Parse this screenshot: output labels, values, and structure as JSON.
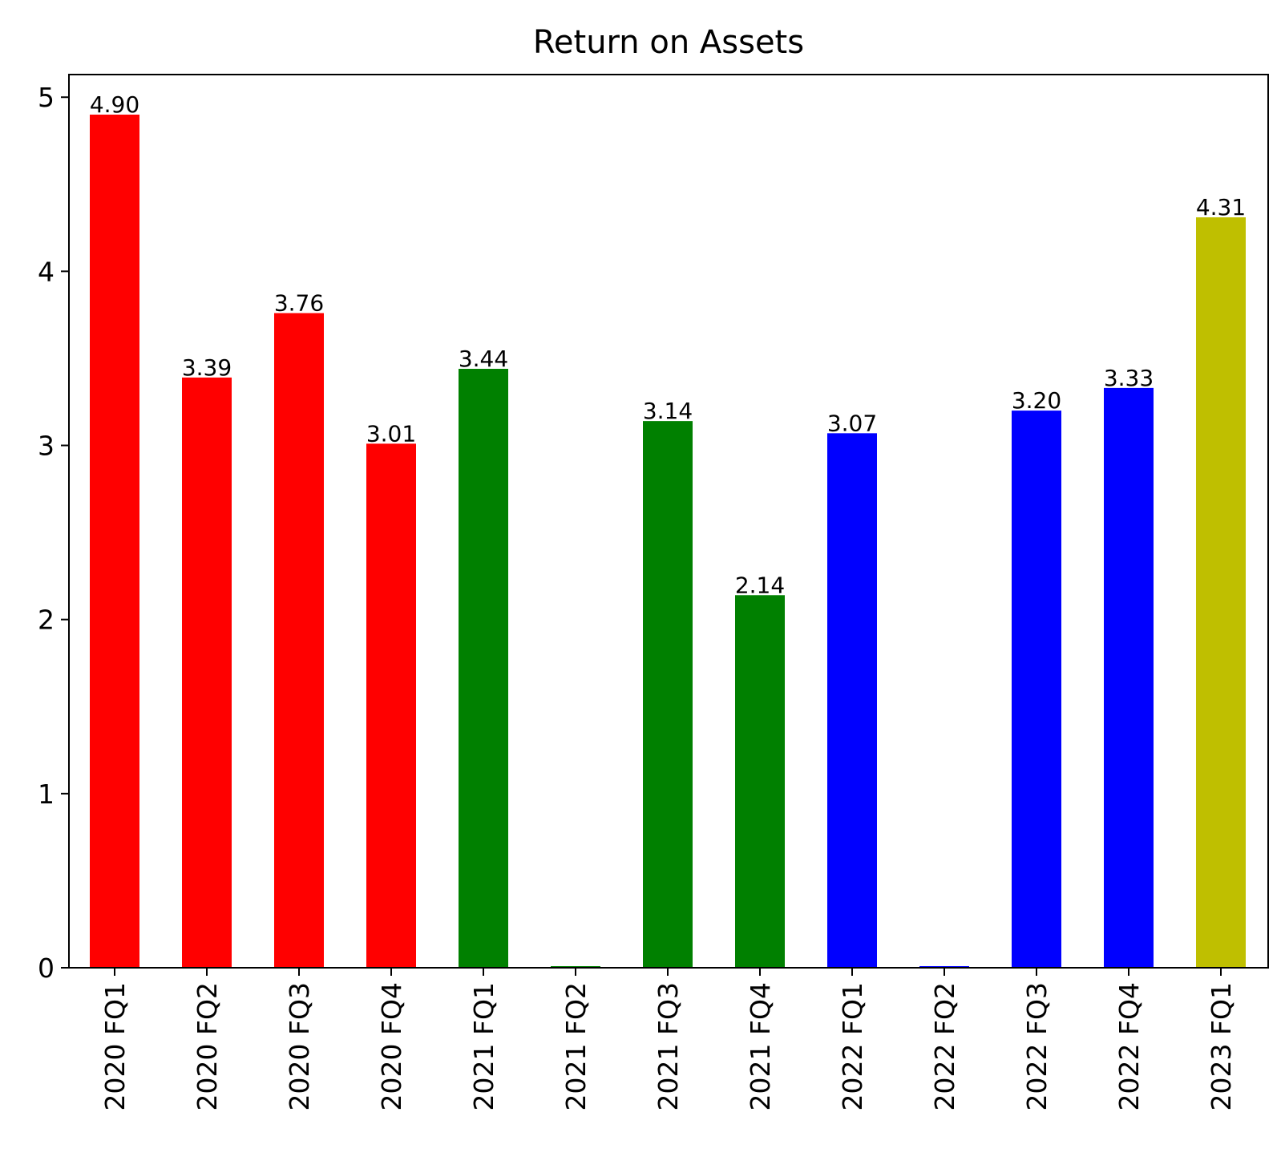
{
  "chart_data": {
    "type": "bar",
    "title": "Return on Assets",
    "xlabel": "",
    "ylabel": "",
    "categories": [
      "2020 FQ1",
      "2020 FQ2",
      "2020 FQ3",
      "2020 FQ4",
      "2021 FQ1",
      "2021 FQ2",
      "2021 FQ3",
      "2021 FQ4",
      "2022 FQ1",
      "2022 FQ2",
      "2022 FQ3",
      "2022 FQ4",
      "2023 FQ1"
    ],
    "values": [
      4.9,
      3.39,
      3.76,
      3.01,
      3.44,
      0.0,
      3.14,
      2.14,
      3.07,
      0.0,
      3.2,
      3.33,
      4.31
    ],
    "value_labels": [
      "4.90",
      "3.39",
      "3.76",
      "3.01",
      "3.44",
      "",
      "3.14",
      "2.14",
      "3.07",
      "",
      "3.20",
      "3.33",
      "4.31"
    ],
    "bar_colors": [
      "#ff0000",
      "#ff0000",
      "#ff0000",
      "#ff0000",
      "#008000",
      "#008000",
      "#008000",
      "#008000",
      "#0000ff",
      "#0000ff",
      "#0000ff",
      "#0000ff",
      "#bfbf00"
    ],
    "ylim": [
      0,
      5.13
    ],
    "yticks": [
      0,
      1,
      2,
      3,
      4,
      5
    ],
    "ytick_labels": [
      "0",
      "1",
      "2",
      "3",
      "4",
      "5"
    ],
    "grid": false,
    "legend": false
  }
}
